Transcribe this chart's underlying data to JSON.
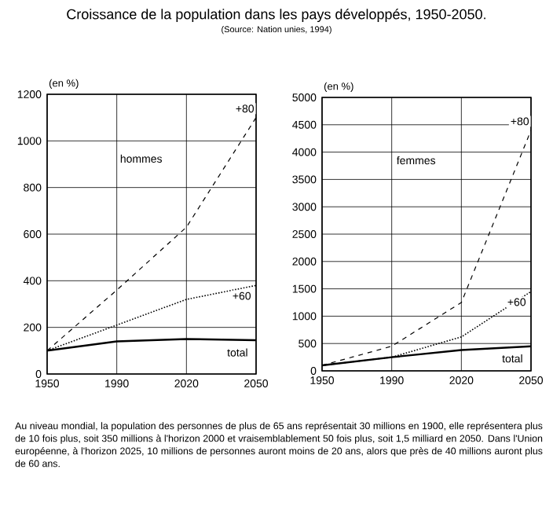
{
  "chart_data": [
    {
      "type": "line",
      "title": "Croissance de la population dans les pays développés, 1950-2050.",
      "subtitle": "hommes",
      "ylabel": "(en %)",
      "annotations": [
        "(Source: Nation unies, 1994)"
      ],
      "categories": [
        "1950",
        "1990",
        "2020",
        "2050"
      ],
      "series": [
        {
          "name": "+80",
          "color": "#000000",
          "line_style": "dashed",
          "values": [
            100,
            360,
            630,
            1100
          ]
        },
        {
          "name": "+60",
          "color": "#000000",
          "line_style": "dotted",
          "values": [
            100,
            210,
            320,
            380
          ]
        },
        {
          "name": "total",
          "color": "#000000",
          "line_style": "solid",
          "values": [
            100,
            140,
            150,
            145
          ]
        }
      ],
      "ylim": [
        0,
        1200
      ],
      "yticks": [
        0,
        200,
        400,
        600,
        800,
        1000,
        1200
      ],
      "grid": true,
      "legend": false,
      "marker": "none"
    },
    {
      "type": "line",
      "subtitle": "femmes",
      "ylabel": "(en %)",
      "annotations": [
        "Au niveau mondial, la population des personnes de plus de 65 ans représentait 30 millions en 1900, elle représentera plus de 10 fois plus, soit 350 millions à l'horizon 2000 et vraisemblablement 50 fois plus, soit 1,5 milliard en 2050. Dans l'Union européenne, à l'horizon 2025, 10 millions de personnes auront moins de 20 ans, alors que près de 40 millions auront plus de 60 ans."
      ],
      "categories": [
        "1950",
        "1990",
        "2020",
        "2050"
      ],
      "series": [
        {
          "name": "+80",
          "color": "#000000",
          "line_style": "dashed",
          "values": [
            100,
            450,
            1250,
            4400
          ]
        },
        {
          "name": "+60",
          "color": "#000000",
          "line_style": "dotted",
          "values": [
            100,
            250,
            620,
            1450
          ]
        },
        {
          "name": "total",
          "color": "#000000",
          "line_style": "solid",
          "values": [
            100,
            250,
            380,
            450
          ]
        }
      ],
      "ylim": [
        0,
        5000
      ],
      "yticks": [
        0,
        500,
        1000,
        1500,
        2000,
        2500,
        3000,
        3500,
        4000,
        4500,
        5000
      ],
      "grid": true,
      "legend": false,
      "marker": "none"
    }
  ]
}
